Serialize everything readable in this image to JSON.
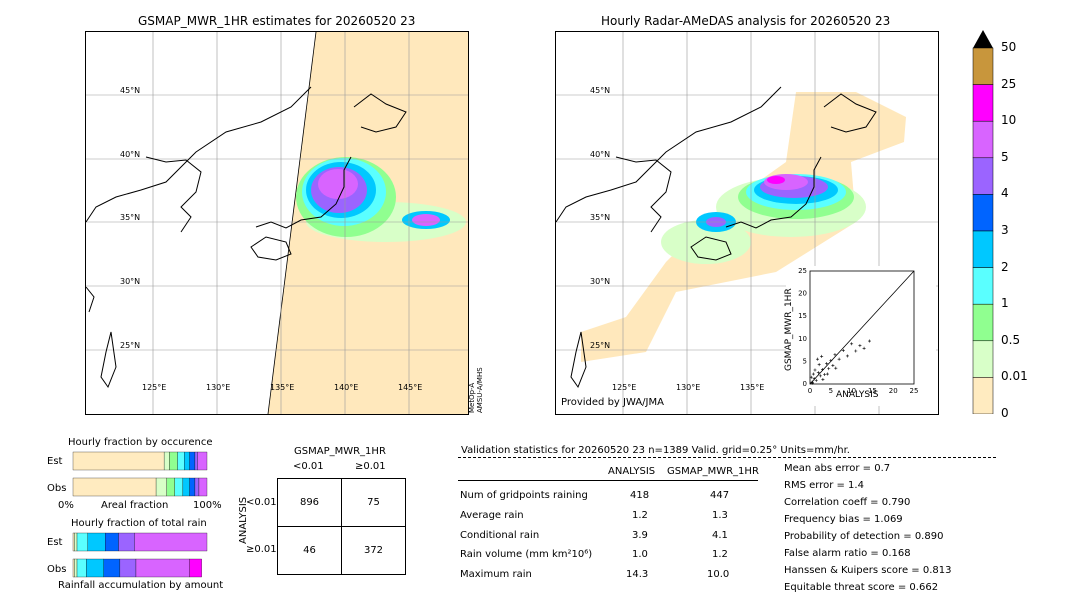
{
  "left_map": {
    "title": "GSMAP_MWR_1HR estimates for 20260520 23",
    "lat_labels": [
      "45°N",
      "40°N",
      "35°N",
      "30°N",
      "25°N"
    ],
    "lon_labels": [
      "125°E",
      "130°E",
      "135°E",
      "140°E",
      "145°E"
    ],
    "satellite_note_1": "MetOp-A",
    "satellite_note_2": "AMSU-A/MHS"
  },
  "right_map": {
    "title": "Hourly Radar-AMeDAS analysis for 20260520 23",
    "lat_labels": [
      "45°N",
      "40°N",
      "35°N",
      "30°N",
      "25°N"
    ],
    "lon_labels": [
      "125°E",
      "130°E",
      "135°E"
    ],
    "provider": "Provided by JWA/JMA"
  },
  "colorbar": {
    "levels": [
      "50",
      "25",
      "10",
      "5",
      "4",
      "3",
      "2",
      "1",
      "0.5",
      "0.01",
      "0"
    ],
    "colors": [
      "#c8963c",
      "#ff00ff",
      "#d864ff",
      "#9b64ff",
      "#0064ff",
      "#00c8ff",
      "#5affff",
      "#90ff90",
      "#d8ffc8",
      "#ffebc0"
    ]
  },
  "scatter": {
    "ylabel": "GSMAP_MWR_1HR",
    "xlabel": "ANALYSIS",
    "ticks": [
      "0",
      "5",
      "10",
      "15",
      "20",
      "25"
    ]
  },
  "occurrence": {
    "title": "Hourly fraction by occurence",
    "row1": "Est",
    "row2": "Obs",
    "axis_left": "0%",
    "axis_mid": "Areal fraction",
    "axis_right": "100%"
  },
  "total_rain": {
    "title": "Hourly fraction of total rain",
    "row1": "Est",
    "row2": "Obs",
    "axis_label": "Rainfall accumulation by amount"
  },
  "contingency": {
    "title": "GSMAP_MWR_1HR",
    "col1": "<0.01",
    "col2": "≥0.01",
    "side_label": "ANALYSIS",
    "row1": "<0.01",
    "row2": "≥0.01",
    "cells": [
      "896",
      "75",
      "46",
      "372"
    ]
  },
  "validation": {
    "header": "Validation statistics for 20260520 23  n=1389 Valid. grid=0.25° Units=mm/hr.",
    "col_analysis": "ANALYSIS",
    "col_gsmap": "GSMAP_MWR_1HR",
    "rows": [
      {
        "label": "Num of gridpoints raining",
        "a": "418",
        "g": "447"
      },
      {
        "label": "Average rain",
        "a": "1.2",
        "g": "1.3"
      },
      {
        "label": "Conditional rain",
        "a": "3.9",
        "g": "4.1"
      },
      {
        "label": "Rain volume (mm km²10⁶)",
        "a": "1.0",
        "g": "1.2"
      },
      {
        "label": "Maximum rain",
        "a": "14.3",
        "g": "10.0"
      }
    ],
    "scores": [
      "Mean abs error =    0.7",
      "RMS error =    1.4",
      "Correlation coeff =  0.790",
      "Frequency bias =  1.069",
      "Probability of detection =  0.890",
      "False alarm ratio =  0.168",
      "Hanssen & Kuipers score =  0.813",
      "Equitable threat score =  0.662"
    ]
  },
  "chart_data": [
    {
      "type": "scatter",
      "title": "",
      "xlabel": "ANALYSIS",
      "ylabel": "GSMAP_MWR_1HR",
      "xlim": [
        0,
        25
      ],
      "ylim": [
        0,
        25
      ],
      "points": [
        [
          0.5,
          0.4
        ],
        [
          1,
          1.2
        ],
        [
          1.5,
          0.8
        ],
        [
          2,
          2.5
        ],
        [
          2.5,
          1.8
        ],
        [
          3,
          3.2
        ],
        [
          3.5,
          2.1
        ],
        [
          4,
          4.5
        ],
        [
          4.5,
          3.4
        ],
        [
          5,
          5.2
        ],
        [
          5.5,
          4.1
        ],
        [
          6,
          6.5
        ],
        [
          7,
          5.5
        ],
        [
          8,
          7.4
        ],
        [
          9,
          6.2
        ],
        [
          10,
          8.9
        ],
        [
          11,
          7.3
        ],
        [
          12,
          8.5
        ],
        [
          13,
          7.9
        ],
        [
          14.3,
          9.5
        ],
        [
          0.3,
          1.5
        ],
        [
          0.8,
          2.2
        ],
        [
          1.2,
          3.1
        ],
        [
          2.2,
          4.3
        ],
        [
          3.1,
          1.0
        ],
        [
          4.2,
          2.2
        ],
        [
          6.2,
          3.5
        ],
        [
          1.8,
          5.5
        ],
        [
          2.8,
          6.1
        ],
        [
          0.6,
          0.2
        ]
      ]
    },
    {
      "type": "bar",
      "title": "Hourly fraction by occurence",
      "categories": [
        "Est",
        "Obs"
      ],
      "series": [
        {
          "values": [
            0.68,
            0.62
          ]
        },
        {
          "values": [
            0.04,
            0.08
          ]
        },
        {
          "values": [
            0.06,
            0.06
          ]
        },
        {
          "values": [
            0.05,
            0.06
          ]
        },
        {
          "values": [
            0.04,
            0.05
          ]
        },
        {
          "values": [
            0.04,
            0.04
          ]
        },
        {
          "values": [
            0.02,
            0.03
          ]
        },
        {
          "values": [
            0.07,
            0.06
          ]
        }
      ]
    },
    {
      "type": "bar",
      "title": "Hourly fraction of total rain",
      "categories": [
        "Est",
        "Obs"
      ],
      "series": [
        {
          "values": [
            0.01,
            0.01
          ]
        },
        {
          "values": [
            0.02,
            0.02
          ]
        },
        {
          "values": [
            0.08,
            0.07
          ]
        },
        {
          "values": [
            0.13,
            0.13
          ]
        },
        {
          "values": [
            0.1,
            0.12
          ]
        },
        {
          "values": [
            0.12,
            0.12
          ]
        },
        {
          "values": [
            0.54,
            0.4
          ]
        },
        {
          "values": [
            0.0,
            0.09
          ]
        }
      ]
    }
  ]
}
